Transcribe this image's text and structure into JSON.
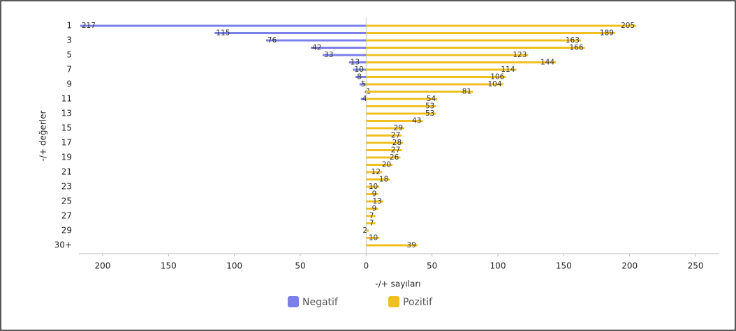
{
  "chart_data": {
    "type": "diverging-bar",
    "categories": [
      "1",
      null,
      "3",
      null,
      "5",
      null,
      "7",
      null,
      "9",
      null,
      "11",
      null,
      "13",
      null,
      "15",
      null,
      "17",
      null,
      "19",
      null,
      "21",
      null,
      "23",
      null,
      "25",
      null,
      "27",
      null,
      "29",
      null,
      "30+"
    ],
    "series": [
      {
        "name": "Negatif",
        "color": "#7b7fe8",
        "values": [
          -217,
          -115,
          -76,
          -42,
          -33,
          -13,
          -10,
          -8,
          -5,
          -1,
          -4,
          null,
          null,
          null,
          null,
          null,
          null,
          null,
          null,
          null,
          null,
          null,
          null,
          null,
          null,
          null,
          null,
          null,
          null,
          null,
          null
        ],
        "value_labels": [
          "217",
          "115",
          "76",
          "42",
          "33",
          "13",
          "10",
          "8",
          "5",
          "1",
          "4",
          null,
          null,
          null,
          null,
          null,
          null,
          null,
          null,
          null,
          null,
          null,
          null,
          null,
          null,
          null,
          null,
          null,
          null,
          null,
          null
        ]
      },
      {
        "name": "Pozitif",
        "color": "#f0c020",
        "values": [
          205,
          189,
          163,
          166,
          123,
          144,
          114,
          106,
          104,
          81,
          54,
          53,
          53,
          43,
          29,
          27,
          28,
          27,
          26,
          20,
          12,
          18,
          10,
          9,
          13,
          9,
          7,
          7,
          2,
          10,
          39
        ]
      }
    ],
    "xlim": [
      -218,
      268
    ],
    "xticks": [
      {
        "value": -200,
        "label": "200"
      },
      {
        "value": -150,
        "label": "150"
      },
      {
        "value": -100,
        "label": "100"
      },
      {
        "value": -50,
        "label": "50"
      },
      0,
      50,
      100,
      150,
      200,
      250
    ],
    "xlabel": "-/+ sayıları",
    "ylabel": "-/+ değerler"
  }
}
